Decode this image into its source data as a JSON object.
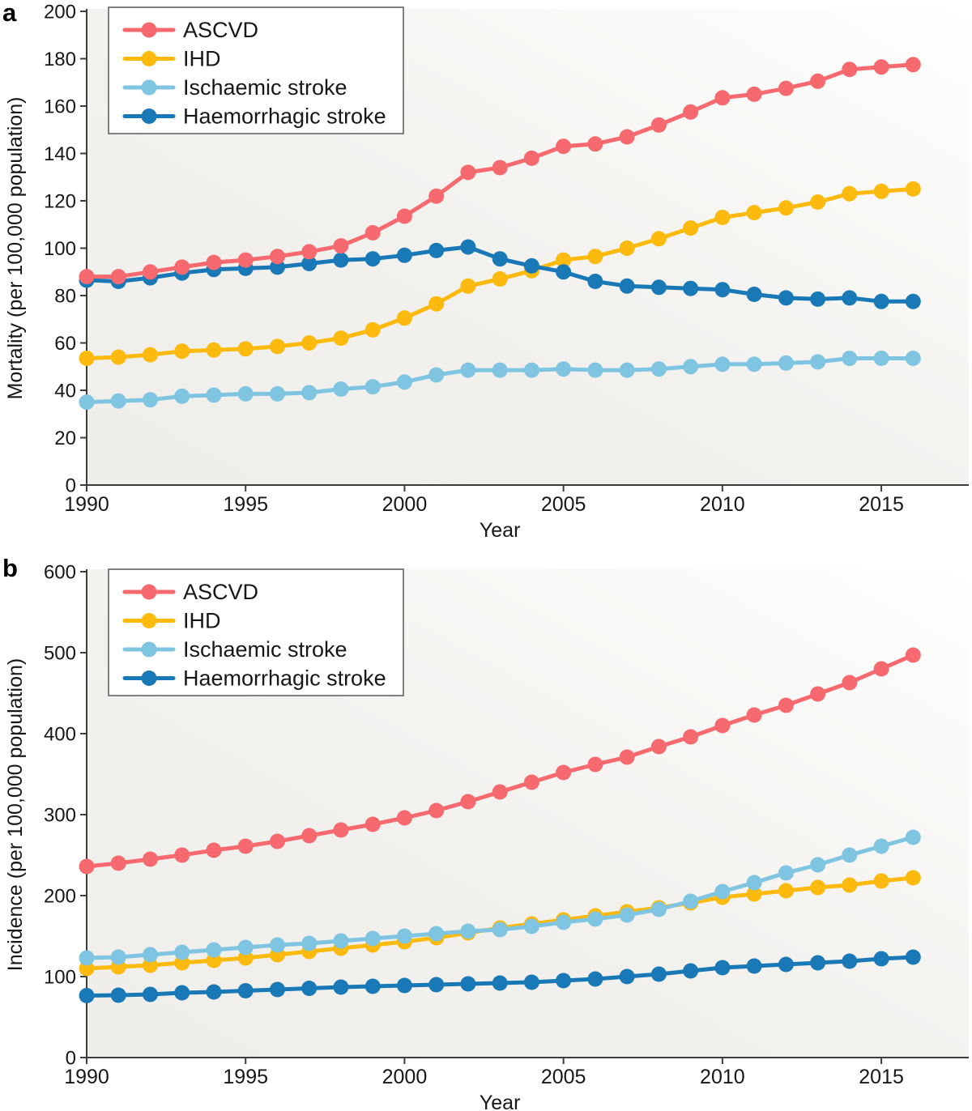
{
  "chart_data": [
    {
      "type": "line",
      "panel_label": "a",
      "title": "",
      "xlabel": "Year",
      "ylabel": "Mortality (per 100,000 population)",
      "xlim": [
        1990,
        2017.75
      ],
      "ylim": [
        0,
        200
      ],
      "xticks": [
        1990,
        1995,
        2000,
        2005,
        2010,
        2015
      ],
      "yticks": [
        0,
        20,
        40,
        60,
        80,
        100,
        120,
        140,
        160,
        180,
        200
      ],
      "grid": false,
      "legend_position": "top-left",
      "x": [
        1990,
        1991,
        1992,
        1993,
        1994,
        1995,
        1996,
        1997,
        1998,
        1999,
        2000,
        2001,
        2002,
        2003,
        2004,
        2005,
        2006,
        2007,
        2008,
        2009,
        2010,
        2011,
        2012,
        2013,
        2014,
        2015,
        2016
      ],
      "series": [
        {
          "name": "ASCVD",
          "color": "#F5696F",
          "values": [
            88,
            88,
            90,
            92,
            94,
            95,
            96.5,
            98.5,
            101,
            106.5,
            113.5,
            122,
            132,
            134,
            138,
            143,
            144,
            147,
            152,
            157.5,
            163.5,
            165,
            167.5,
            170.5,
            175.5,
            176.5,
            177.5
          ]
        },
        {
          "name": "IHD",
          "color": "#FBBA0D",
          "values": [
            53.5,
            54,
            55,
            56.5,
            57,
            57.5,
            58.5,
            60,
            62,
            65.5,
            70.5,
            76.5,
            84,
            87,
            90.5,
            95,
            96.5,
            100,
            104,
            108.5,
            113,
            115,
            117,
            119.5,
            123,
            124,
            125
          ]
        },
        {
          "name": "Ischaemic stroke",
          "color": "#7FC5E2",
          "values": [
            35,
            35.5,
            36,
            37.5,
            38,
            38.5,
            38.5,
            39,
            40.5,
            41.5,
            43.5,
            46.5,
            48.5,
            48.5,
            48.5,
            49,
            48.5,
            48.5,
            49,
            50,
            51,
            51,
            51.5,
            52,
            53.5,
            53.5,
            53.5
          ]
        },
        {
          "name": "Haemorrhagic stroke",
          "color": "#1978B6",
          "values": [
            86.5,
            86,
            87.5,
            89.5,
            91,
            91.5,
            92,
            93.5,
            95,
            95.5,
            97,
            99,
            100.5,
            95.5,
            92.5,
            90,
            86,
            84,
            83.5,
            83,
            82.5,
            80.5,
            79,
            78.5,
            79,
            77.5,
            77.5
          ]
        }
      ]
    },
    {
      "type": "line",
      "panel_label": "b",
      "title": "",
      "xlabel": "Year",
      "ylabel": "Incidence (per 100,000 population)",
      "xlim": [
        1990,
        2017.75
      ],
      "ylim": [
        0,
        600
      ],
      "xticks": [
        1990,
        1995,
        2000,
        2005,
        2010,
        2015
      ],
      "yticks": [
        0,
        100,
        200,
        300,
        400,
        500,
        600
      ],
      "grid": false,
      "legend_position": "top-left",
      "x": [
        1990,
        1991,
        1992,
        1993,
        1994,
        1995,
        1996,
        1997,
        1998,
        1999,
        2000,
        2001,
        2002,
        2003,
        2004,
        2005,
        2006,
        2007,
        2008,
        2009,
        2010,
        2011,
        2012,
        2013,
        2014,
        2015,
        2016
      ],
      "series": [
        {
          "name": "ASCVD",
          "color": "#F5696F",
          "values": [
            236,
            240,
            245,
            250,
            256,
            261,
            267,
            274,
            281,
            288,
            296,
            305,
            316,
            328,
            340,
            352,
            362,
            371,
            384,
            396,
            410,
            423,
            435,
            449,
            463,
            480,
            497
          ]
        },
        {
          "name": "IHD",
          "color": "#FBBA0D",
          "values": [
            110,
            112,
            114,
            117,
            120,
            123,
            127,
            131,
            135,
            139,
            143,
            148,
            154,
            160,
            165,
            170,
            175,
            180,
            185,
            191,
            198,
            202,
            206,
            210,
            213,
            218,
            222
          ]
        },
        {
          "name": "Ischaemic stroke",
          "color": "#7FC5E2",
          "values": [
            123,
            124,
            127,
            130,
            133,
            136,
            139,
            141,
            144,
            147,
            150,
            153,
            156,
            158,
            162,
            167,
            171,
            176,
            183,
            193,
            205,
            216,
            228,
            238,
            250,
            261,
            272
          ]
        },
        {
          "name": "Haemorrhagic stroke",
          "color": "#1978B6",
          "values": [
            76.5,
            77,
            78,
            80,
            81,
            82.5,
            84,
            85.5,
            87,
            88,
            89,
            90,
            91,
            92,
            93,
            95,
            97,
            100,
            103,
            107,
            111,
            113,
            115,
            117,
            119,
            122,
            124
          ]
        }
      ]
    }
  ],
  "style": {
    "axis_color": "#3D3D3D",
    "text_color": "#171717",
    "plot_bg_left": "#EFEEEA",
    "plot_bg_mid": "#F2F1EE",
    "plot_bg_right": "#FFFFFF",
    "legend_border": "#58595B",
    "legend_bg": "#FFFFFF"
  }
}
